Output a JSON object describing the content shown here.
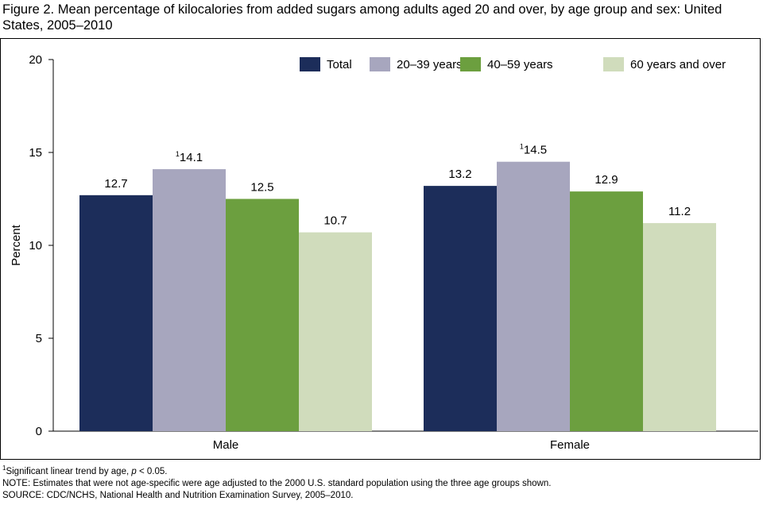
{
  "title": "Figure 2. Mean percentage of kilocalories from added sugars among adults aged 20 and over, by age group and sex: United States, 2005–2010",
  "chart_data": {
    "type": "bar",
    "title": "Mean percentage of kilocalories from added sugars among adults aged 20 and over, by age group and sex: United States, 2005–2010",
    "categories": [
      "Male",
      "Female"
    ],
    "series": [
      {
        "name": "Total",
        "color": "#1c2d5a",
        "values": [
          12.7,
          13.2
        ],
        "labels": [
          "12.7",
          "13.2"
        ],
        "marks": [
          "",
          ""
        ]
      },
      {
        "name": "20–39 years",
        "color": "#a7a6be",
        "values": [
          14.1,
          14.5
        ],
        "labels": [
          "14.1",
          "14.5"
        ],
        "marks": [
          "1",
          "1"
        ]
      },
      {
        "name": "40–59 years",
        "color": "#6c9f3f",
        "values": [
          12.5,
          12.9
        ],
        "labels": [
          "12.5",
          "12.9"
        ],
        "marks": [
          "",
          ""
        ]
      },
      {
        "name": "60 years and over",
        "color": "#d0dcbc",
        "values": [
          10.7,
          11.2
        ],
        "labels": [
          "10.7",
          "11.2"
        ],
        "marks": [
          "",
          ""
        ]
      }
    ],
    "ylabel": "Percent",
    "xlabel": "",
    "ylim": [
      0,
      20
    ],
    "yticks": [
      0,
      5,
      10,
      15,
      20
    ],
    "legend_position": "top-right",
    "grid": false
  },
  "footnotes": {
    "footnote_mark": "1",
    "footnote_text": "Significant linear trend by age, ",
    "footnote_p": "p",
    "footnote_rest": " < 0.05.",
    "note": "NOTE: Estimates that were not age-specific were age adjusted to the 2000 U.S. standard population using the three age groups shown.",
    "source": "SOURCE: CDC/NCHS, National Health and Nutrition Examination Survey, 2005–2010."
  }
}
